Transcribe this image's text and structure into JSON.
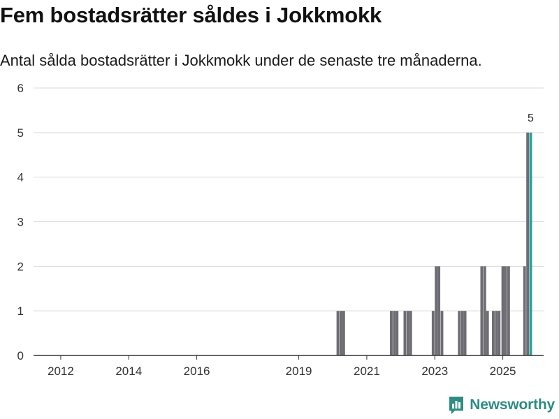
{
  "title": "Fem bostadsrätter såldes i Jokkmokk",
  "subtitle": "Antal sålda bostadsrätter i Jokkmokk under de senaste tre månaderna.",
  "brand": {
    "name": "Newsworthy",
    "icon": "newsworthy-logo-icon",
    "color": "#2e8c84"
  },
  "colors": {
    "bar": "#6d6d73",
    "highlight": "#2aa198",
    "grid": "#d9d9d9",
    "axis": "#333333"
  },
  "chart_data": {
    "type": "bar",
    "title": "Fem bostadsrätter såldes i Jokkmokk",
    "subtitle": "Antal sålda bostadsrätter i Jokkmokk under de senaste tre månaderna.",
    "xlabel": "",
    "ylabel": "",
    "ylim": [
      0,
      6
    ],
    "y_ticks": [
      0,
      1,
      2,
      3,
      4,
      5,
      6
    ],
    "x_range": [
      2011.2,
      2026.2
    ],
    "x_ticks": [
      {
        "label": "2012",
        "value": 2012
      },
      {
        "label": "2014",
        "value": 2014
      },
      {
        "label": "2016",
        "value": 2016
      },
      {
        "label": "2019",
        "value": 2019
      },
      {
        "label": "2021",
        "value": 2021
      },
      {
        "label": "2023",
        "value": 2023
      },
      {
        "label": "2025",
        "value": 2025
      }
    ],
    "grid": true,
    "bar_width_years": 0.08,
    "series": [
      {
        "name": "Antal sålda bostadsrätter",
        "points": [
          {
            "x": 2020.15,
            "y": 1
          },
          {
            "x": 2020.24,
            "y": 1
          },
          {
            "x": 2020.32,
            "y": 1
          },
          {
            "x": 2021.72,
            "y": 1
          },
          {
            "x": 2021.81,
            "y": 1
          },
          {
            "x": 2021.89,
            "y": 1
          },
          {
            "x": 2022.12,
            "y": 1
          },
          {
            "x": 2022.21,
            "y": 1
          },
          {
            "x": 2022.29,
            "y": 1
          },
          {
            "x": 2022.95,
            "y": 1
          },
          {
            "x": 2023.04,
            "y": 2
          },
          {
            "x": 2023.12,
            "y": 2
          },
          {
            "x": 2023.21,
            "y": 1
          },
          {
            "x": 2023.72,
            "y": 1
          },
          {
            "x": 2023.81,
            "y": 1
          },
          {
            "x": 2023.89,
            "y": 1
          },
          {
            "x": 2024.38,
            "y": 2
          },
          {
            "x": 2024.47,
            "y": 2
          },
          {
            "x": 2024.55,
            "y": 1
          },
          {
            "x": 2024.72,
            "y": 1
          },
          {
            "x": 2024.81,
            "y": 1
          },
          {
            "x": 2024.89,
            "y": 1
          },
          {
            "x": 2025.0,
            "y": 2
          },
          {
            "x": 2025.08,
            "y": 2
          },
          {
            "x": 2025.17,
            "y": 2
          },
          {
            "x": 2025.64,
            "y": 2
          },
          {
            "x": 2025.73,
            "y": 5
          },
          {
            "x": 2025.82,
            "y": 5,
            "highlight": true,
            "label": "5"
          }
        ]
      }
    ]
  }
}
